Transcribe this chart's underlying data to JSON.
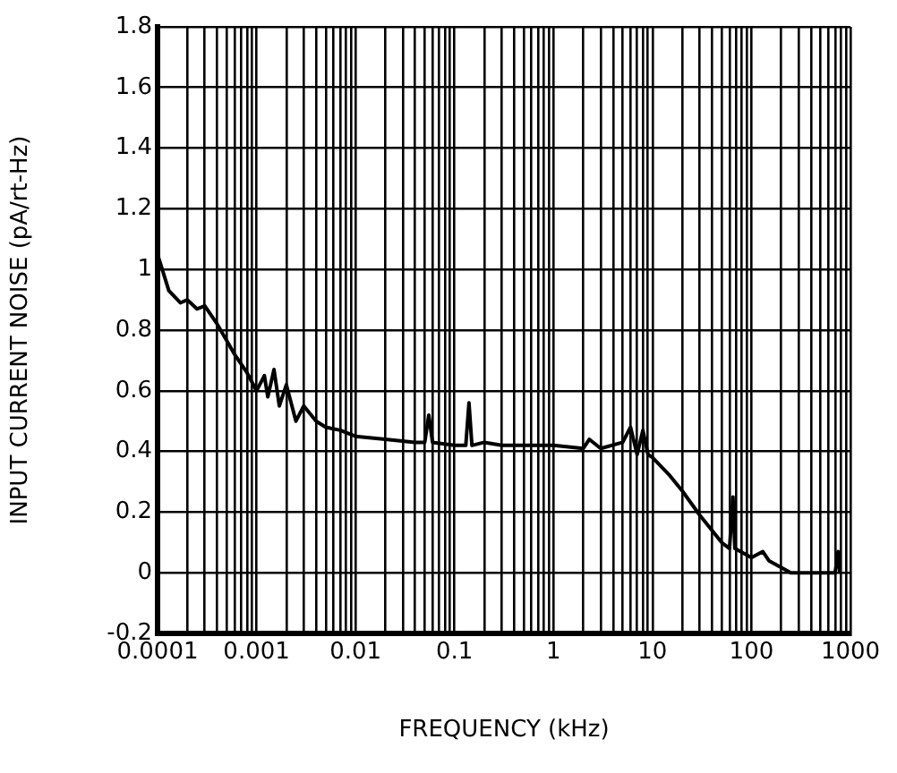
{
  "chart_data": {
    "type": "line",
    "xlabel": "FREQUENCY (kHz)",
    "ylabel": "INPUT CURRENT NOISE (pA/rt-Hz)",
    "log": "x",
    "grid": true,
    "legend": false,
    "marker": "none",
    "line_style": "solid",
    "xlim": [
      0.0001,
      1000
    ],
    "ylim": [
      -0.2,
      1.8
    ],
    "xticks": [
      0.0001,
      {
        "value": 0.0002,
        "label": null
      },
      {
        "value": 0.0003,
        "label": null
      },
      {
        "value": 0.0004,
        "label": null
      },
      {
        "value": 0.0005,
        "label": null
      },
      {
        "value": 0.0006,
        "label": null
      },
      {
        "value": 0.0007,
        "label": null
      },
      {
        "value": 0.0008,
        "label": null
      },
      {
        "value": 0.0009,
        "label": null
      },
      0.001,
      {
        "value": 0.002,
        "label": null
      },
      {
        "value": 0.003,
        "label": null
      },
      {
        "value": 0.004,
        "label": null
      },
      {
        "value": 0.005,
        "label": null
      },
      {
        "value": 0.006,
        "label": null
      },
      {
        "value": 0.007,
        "label": null
      },
      {
        "value": 0.008,
        "label": null
      },
      {
        "value": 0.009,
        "label": null
      },
      0.01,
      {
        "value": 0.02,
        "label": null
      },
      {
        "value": 0.03,
        "label": null
      },
      {
        "value": 0.04,
        "label": null
      },
      {
        "value": 0.05,
        "label": null
      },
      {
        "value": 0.06,
        "label": null
      },
      {
        "value": 0.07,
        "label": null
      },
      {
        "value": 0.08,
        "label": null
      },
      {
        "value": 0.09,
        "label": null
      },
      0.1,
      {
        "value": 0.2,
        "label": null
      },
      {
        "value": 0.3,
        "label": null
      },
      {
        "value": 0.4,
        "label": null
      },
      {
        "value": 0.5,
        "label": null
      },
      {
        "value": 0.6,
        "label": null
      },
      {
        "value": 0.7,
        "label": null
      },
      {
        "value": 0.8,
        "label": null
      },
      {
        "value": 0.9,
        "label": null
      },
      1,
      {
        "value": 2,
        "label": null
      },
      {
        "value": 3,
        "label": null
      },
      {
        "value": 4,
        "label": null
      },
      {
        "value": 5,
        "label": null
      },
      {
        "value": 6,
        "label": null
      },
      {
        "value": 7,
        "label": null
      },
      {
        "value": 8,
        "label": null
      },
      {
        "value": 9,
        "label": null
      },
      10,
      {
        "value": 20,
        "label": null
      },
      {
        "value": 30,
        "label": null
      },
      {
        "value": 40,
        "label": null
      },
      {
        "value": 50,
        "label": null
      },
      {
        "value": 60,
        "label": null
      },
      {
        "value": 70,
        "label": null
      },
      {
        "value": 80,
        "label": null
      },
      {
        "value": 90,
        "label": null
      },
      100,
      {
        "value": 200,
        "label": null
      },
      {
        "value": 300,
        "label": null
      },
      {
        "value": 400,
        "label": null
      },
      {
        "value": 500,
        "label": null
      },
      {
        "value": 600,
        "label": null
      },
      {
        "value": 700,
        "label": null
      },
      {
        "value": 800,
        "label": null
      },
      {
        "value": 900,
        "label": null
      },
      1000
    ],
    "yticks": [
      -0.2,
      0,
      0.2,
      0.4,
      0.6,
      0.8,
      1,
      1.2,
      1.4,
      1.6,
      1.8
    ],
    "series": [
      {
        "color": "#000000",
        "x": [
          0.0001,
          0.00013,
          0.00017,
          0.0002,
          0.00025,
          0.0003,
          0.0004,
          0.0006,
          0.0008,
          0.001,
          0.0012,
          0.0013,
          0.0015,
          0.0017,
          0.002,
          0.0025,
          0.003,
          0.004,
          0.005,
          0.007,
          0.01,
          0.02,
          0.04,
          0.05,
          0.055,
          0.06,
          0.1,
          0.13,
          0.14,
          0.15,
          0.2,
          0.3,
          1,
          2,
          2.3,
          3,
          5,
          6,
          7,
          8,
          9,
          10,
          15,
          20,
          30,
          50,
          60,
          65,
          68,
          100,
          130,
          150,
          250,
          700,
          750,
          780
        ],
        "values": [
          1.05,
          0.93,
          0.89,
          0.9,
          0.87,
          0.88,
          0.82,
          0.72,
          0.66,
          0.6,
          0.65,
          0.58,
          0.67,
          0.55,
          0.62,
          0.5,
          0.55,
          0.5,
          0.48,
          0.47,
          0.45,
          0.44,
          0.43,
          0.43,
          0.52,
          0.43,
          0.42,
          0.42,
          0.56,
          0.42,
          0.43,
          0.42,
          0.42,
          0.41,
          0.44,
          0.41,
          0.43,
          0.48,
          0.39,
          0.47,
          0.39,
          0.38,
          0.32,
          0.27,
          0.19,
          0.1,
          0.08,
          0.25,
          0.08,
          0.05,
          0.07,
          0.04,
          0.0,
          0.0,
          0.07,
          0.0
        ]
      }
    ]
  }
}
